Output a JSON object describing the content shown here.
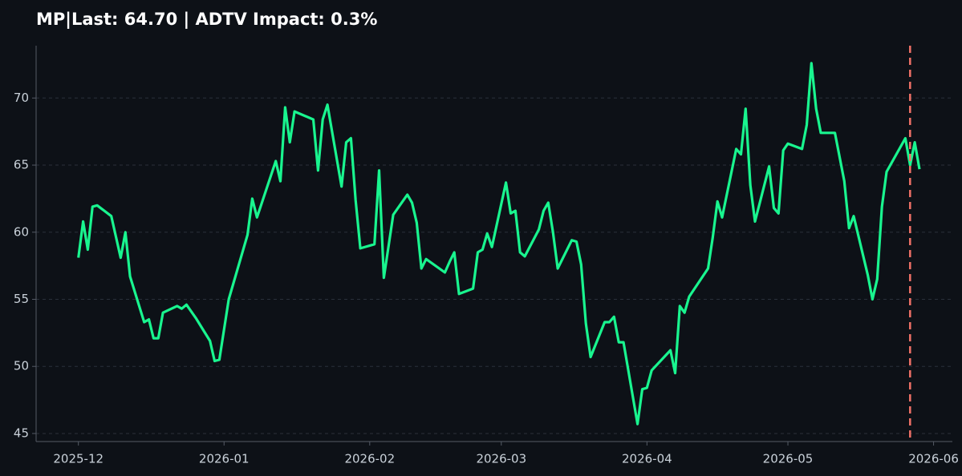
{
  "chart_data": {
    "type": "line",
    "title": "MP|Last: 64.70 | ADTV Impact: 0.3%",
    "x": [
      "2025-12-01",
      "2025-12-02",
      "2025-12-03",
      "2025-12-04",
      "2025-12-05",
      "2025-12-08",
      "2025-12-10",
      "2025-12-11",
      "2025-12-12",
      "2025-12-15",
      "2025-12-16",
      "2025-12-17",
      "2025-12-18",
      "2025-12-19",
      "2025-12-22",
      "2025-12-23",
      "2025-12-24",
      "2025-12-26",
      "2025-12-29",
      "2025-12-30",
      "2025-12-31",
      "2026-01-02",
      "2026-01-06",
      "2026-01-07",
      "2026-01-08",
      "2026-01-12",
      "2026-01-13",
      "2026-01-14",
      "2026-01-15",
      "2026-01-16",
      "2026-01-20",
      "2026-01-21",
      "2026-01-22",
      "2026-01-23",
      "2026-01-26",
      "2026-01-27",
      "2026-01-28",
      "2026-01-29",
      "2026-01-30",
      "2026-02-02",
      "2026-02-03",
      "2026-02-04",
      "2026-02-06",
      "2026-02-09",
      "2026-02-10",
      "2026-02-11",
      "2026-02-12",
      "2026-02-13",
      "2026-02-17",
      "2026-02-18",
      "2026-02-19",
      "2026-02-20",
      "2026-02-23",
      "2026-02-24",
      "2026-02-25",
      "2026-02-26",
      "2026-02-27",
      "2026-03-02",
      "2026-03-03",
      "2026-03-04",
      "2026-03-05",
      "2026-03-06",
      "2026-03-09",
      "2026-03-10",
      "2026-03-11",
      "2026-03-12",
      "2026-03-13",
      "2026-03-16",
      "2026-03-17",
      "2026-03-18",
      "2026-03-19",
      "2026-03-20",
      "2026-03-23",
      "2026-03-24",
      "2026-03-25",
      "2026-03-26",
      "2026-03-27",
      "2026-03-30",
      "2026-03-31",
      "2026-04-01",
      "2026-04-02",
      "2026-04-06",
      "2026-04-07",
      "2026-04-08",
      "2026-04-09",
      "2026-04-10",
      "2026-04-14",
      "2026-04-15",
      "2026-04-16",
      "2026-04-17",
      "2026-04-20",
      "2026-04-21",
      "2026-04-22",
      "2026-04-23",
      "2026-04-24",
      "2026-04-27",
      "2026-04-28",
      "2026-04-29",
      "2026-04-30",
      "2026-05-01",
      "2026-05-04",
      "2026-05-05",
      "2026-05-06",
      "2026-05-07",
      "2026-05-08",
      "2026-05-11",
      "2026-05-13",
      "2026-05-14",
      "2026-05-15",
      "2026-05-18",
      "2026-05-19",
      "2026-05-20",
      "2026-05-21",
      "2026-05-22",
      "2026-05-26",
      "2026-05-27",
      "2026-05-28",
      "2026-05-29"
    ],
    "series": [
      {
        "name": "MP",
        "color": "#19f58f",
        "values": [
          58.1,
          60.8,
          58.7,
          61.9,
          62.0,
          61.2,
          58.1,
          60.0,
          56.7,
          53.3,
          53.5,
          52.1,
          52.1,
          54.0,
          54.5,
          54.3,
          54.6,
          53.6,
          51.9,
          50.4,
          50.5,
          55.0,
          59.8,
          62.5,
          61.1,
          65.3,
          63.8,
          69.3,
          66.7,
          69.0,
          68.4,
          64.6,
          68.4,
          69.5,
          63.4,
          66.7,
          67.0,
          62.4,
          58.8,
          59.1,
          64.6,
          56.6,
          61.3,
          62.8,
          62.2,
          60.7,
          57.3,
          58.0,
          57.0,
          57.8,
          58.5,
          55.4,
          55.8,
          58.5,
          58.7,
          59.9,
          58.9,
          63.7,
          61.4,
          61.6,
          58.5,
          58.2,
          60.2,
          61.6,
          62.2,
          60.0,
          57.3,
          59.4,
          59.3,
          57.6,
          53.2,
          50.7,
          53.3,
          53.3,
          53.7,
          51.8,
          51.8,
          45.7,
          48.3,
          48.4,
          49.7,
          51.2,
          49.5,
          54.5,
          54.0,
          55.2,
          57.3,
          59.6,
          62.3,
          61.1,
          66.2,
          65.8,
          69.2,
          63.5,
          60.8,
          64.9,
          61.8,
          61.4,
          66.1,
          66.6,
          66.2,
          68.0,
          72.6,
          69.2,
          67.4,
          67.4,
          63.8,
          60.3,
          61.2,
          56.8,
          55.0,
          56.5,
          61.9,
          64.5,
          67.0,
          65.0,
          66.7,
          64.7
        ]
      }
    ],
    "vline": {
      "x": "2026-05-27",
      "color": "#f07167"
    },
    "xlim": [
      "2025-11-22",
      "2026-06-05"
    ],
    "xticks": [
      {
        "value": "2025-12-01",
        "label": "2025-12"
      },
      {
        "value": "2026-01-01",
        "label": "2026-01"
      },
      {
        "value": "2026-02-01",
        "label": "2026-02"
      },
      {
        "value": "2026-03-01",
        "label": "2026-03"
      },
      {
        "value": "2026-04-01",
        "label": "2026-04"
      },
      {
        "value": "2026-05-01",
        "label": "2026-05"
      },
      {
        "value": "2026-06-01",
        "label": "2026-06"
      }
    ],
    "ylim": [
      44.4,
      73.9
    ],
    "yticks": [
      45,
      50,
      55,
      60,
      65,
      70
    ],
    "grid": true
  }
}
